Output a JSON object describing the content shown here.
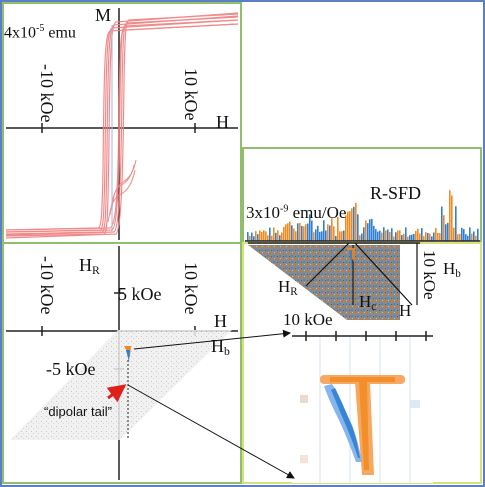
{
  "colors": {
    "green_frame": "#8fbf6a",
    "blue_frame": "#5b7fc4",
    "yellow_frame": "#d9e07a",
    "hysteresis": "#f07f7f",
    "orange": "#f28a1f",
    "blue": "#2e7fd4",
    "arrow_red": "#e0201a",
    "gray_field": "#7f7f7f"
  },
  "panel_major_loop": {
    "axis_y_label": "M",
    "axis_x_label": "H",
    "scale_label": "4x10",
    "scale_exp": "-5",
    "scale_unit": "emu",
    "tick_neg": "-10 kOe",
    "tick_pos": "10 kOe"
  },
  "panel_rsfd": {
    "title": "R-SFD",
    "scale_label": "3x10",
    "scale_exp": "-9",
    "scale_unit": "emu/Oe",
    "hr_main": "H",
    "hr_sub": "R",
    "hc_main": "H",
    "hc_sub": "c",
    "h_label": "H",
    "hb_main": "H",
    "hb_sub": "b",
    "tick_10": "10 kOe",
    "tick_vert": "10 kOe"
  },
  "panel_forc": {
    "hr_main": "H",
    "hr_sub": "R",
    "tick_neg_vert": "-10 kOe",
    "tick_pos_vert": "10 kOe",
    "tick_5": "5 kOe",
    "tick_m5": "-5 kOe",
    "h_label": "H",
    "hb_main": "H",
    "hb_sub": "b",
    "annotation": "“dipolar tail”"
  }
}
